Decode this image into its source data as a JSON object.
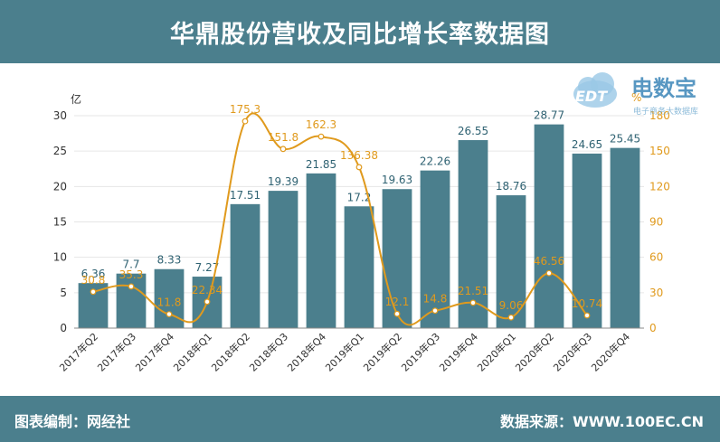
{
  "header": {
    "title": "华鼎股份营收及同比增长率数据图"
  },
  "footer": {
    "editor": "图表编制：网经社",
    "source": "数据来源：WWW.100EC.CN"
  },
  "logo": {
    "text": "电数宝",
    "sub": "电子商务大数据库",
    "badge": "EDT"
  },
  "colors": {
    "bar": "#4b7f8d",
    "line": "#e09a1d",
    "header": "#4b7f8d"
  },
  "chart_data": {
    "type": "bar",
    "categories": [
      "2017年Q2",
      "2017年Q3",
      "2017年Q4",
      "2018年Q1",
      "2018年Q2",
      "2018年Q3",
      "2018年Q4",
      "2019年Q1",
      "2019年Q2",
      "2019年Q3",
      "2019年Q4",
      "2020年Q1",
      "2020年Q2",
      "2020年Q3",
      "2020年Q4"
    ],
    "series": [
      {
        "name": "",
        "type": "bar",
        "axis": "left",
        "values": [
          6.36,
          7.7,
          8.33,
          7.27,
          17.51,
          19.39,
          21.85,
          17.2,
          19.63,
          22.26,
          26.55,
          18.76,
          28.77,
          24.65,
          25.45
        ]
      },
      {
        "name": "",
        "type": "line",
        "axis": "right",
        "values": [
          30.8,
          35.3,
          11.8,
          22.34,
          175.3,
          151.8,
          162.3,
          136.38,
          12.1,
          14.8,
          21.51,
          9.06,
          46.56,
          10.74,
          null
        ]
      }
    ],
    "yunit_left": "亿",
    "yunit_right": "%",
    "ylim_left": [
      0,
      30
    ],
    "ylim_right": [
      0,
      180
    ],
    "yticks_left": [
      0,
      5,
      10,
      15,
      20,
      25,
      30
    ],
    "yticks_right": [
      0,
      30,
      60,
      90,
      120,
      150,
      180
    ],
    "grid": true
  }
}
